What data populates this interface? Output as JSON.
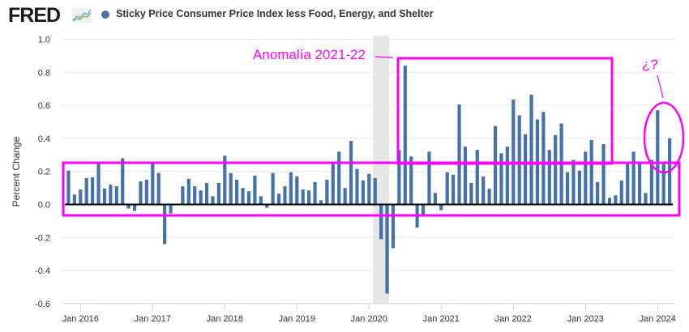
{
  "header": {
    "logo_text": "FRED",
    "logo_icon": "line-chart-icon",
    "legend_label": "Sticky Price Consumer Price Index less Food, Energy, and Shelter"
  },
  "colors": {
    "bar": "#4572a7",
    "zero_line": "#000000",
    "grid": "#e6e6e6",
    "recession": "#e6e6e6",
    "annotation": "#ff00ff",
    "axis_line": "#ccd6eb"
  },
  "annotations": {
    "anomaly_label": "Anomalía 2021-22",
    "question_label": "¿?"
  },
  "chart_data": {
    "type": "bar",
    "title": "Sticky Price Consumer Price Index less Food, Energy, and Shelter",
    "xlabel": "",
    "ylabel": "Percent Change",
    "ylim": [
      -0.6,
      1.0
    ],
    "yticks": [
      1.0,
      0.8,
      0.6,
      0.4,
      0.2,
      0.0,
      -0.2,
      -0.4,
      -0.6
    ],
    "ytick_labels": [
      "1.0",
      "0.8",
      "0.6",
      "0.4",
      "0.2",
      "0.0",
      "-0.2",
      "-0.4",
      "-0.6"
    ],
    "xlim": [
      "2015-11",
      "2024-03"
    ],
    "xticks": [
      "Jan 2016",
      "Jan 2017",
      "Jan 2018",
      "Jan 2019",
      "Jan 2020",
      "Jan 2021",
      "Jan 2022",
      "Jan 2023",
      "Jan 2024"
    ],
    "grid": true,
    "legend": "top-left",
    "recession_shading": {
      "start": "2020-02",
      "end": "2020-04"
    },
    "start_month": "2015-11",
    "values": [
      0.205,
      0.06,
      0.09,
      0.16,
      0.165,
      0.25,
      0.097,
      0.12,
      0.11,
      0.28,
      -0.025,
      -0.04,
      0.14,
      0.15,
      0.25,
      0.19,
      -0.24,
      -0.055,
      0.0,
      0.11,
      0.155,
      0.11,
      0.085,
      0.13,
      0.05,
      0.13,
      0.295,
      0.19,
      0.15,
      0.1,
      0.08,
      0.175,
      0.05,
      -0.02,
      0.19,
      0.065,
      0.11,
      0.195,
      0.17,
      0.09,
      0.085,
      0.135,
      0.025,
      0.15,
      0.25,
      0.32,
      0.1,
      0.385,
      0.215,
      0.145,
      0.185,
      0.16,
      -0.21,
      -0.54,
      -0.265,
      0.33,
      0.84,
      0.29,
      -0.14,
      -0.065,
      0.32,
      0.07,
      -0.035,
      0.195,
      0.18,
      0.605,
      0.35,
      0.13,
      0.33,
      0.17,
      0.095,
      0.475,
      0.31,
      0.35,
      0.635,
      0.54,
      0.425,
      0.665,
      0.515,
      0.56,
      0.33,
      0.42,
      0.49,
      0.195,
      0.27,
      0.205,
      0.32,
      0.39,
      0.135,
      0.365,
      0.04,
      0.055,
      0.145,
      0.25,
      0.32,
      0.26,
      0.07,
      0.27,
      0.57,
      0.25,
      0.4
    ]
  }
}
